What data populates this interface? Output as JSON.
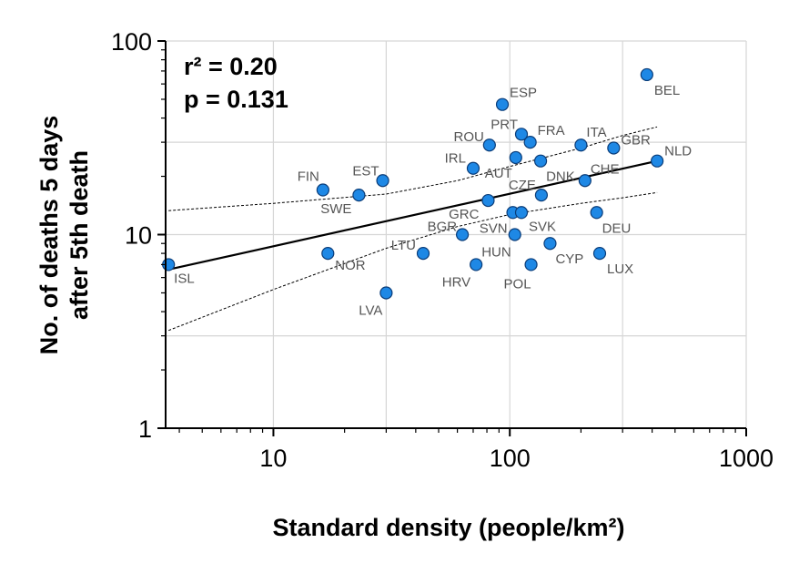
{
  "chart_data": {
    "type": "scatter",
    "xscale": "log",
    "yscale": "log",
    "xlim": [
      3.5,
      1000
    ],
    "ylim": [
      1,
      100
    ],
    "xticks": [
      10,
      100,
      1000
    ],
    "xtick_labels": [
      "10",
      "100",
      "1000"
    ],
    "yticks": [
      1,
      10,
      100
    ],
    "ytick_labels": [
      "1",
      "10",
      "100"
    ],
    "xlabel": "Standard density (people/km²)",
    "ylabel_line1": "No. of deaths 5 days",
    "ylabel_line2": "after 5th death",
    "stats": {
      "r2": "r² = 0.20",
      "p": "p = 0.131"
    },
    "point_color": "#1e88e5",
    "points": [
      {
        "label": "ISL",
        "x": 3.6,
        "y": 7.0
      },
      {
        "label": "FIN",
        "x": 16.2,
        "y": 17.0
      },
      {
        "label": "NOR",
        "x": 17.0,
        "y": 8.0
      },
      {
        "label": "SWE",
        "x": 23.0,
        "y": 16.0
      },
      {
        "label": "EST",
        "x": 29.0,
        "y": 19.0
      },
      {
        "label": "LVA",
        "x": 30.0,
        "y": 5.0
      },
      {
        "label": "LTU",
        "x": 43.0,
        "y": 8.0
      },
      {
        "label": "BGR",
        "x": 63.0,
        "y": 10.0
      },
      {
        "label": "IRL",
        "x": 70.0,
        "y": 22.0
      },
      {
        "label": "HRV",
        "x": 72.0,
        "y": 7.0
      },
      {
        "label": "GRC",
        "x": 81.0,
        "y": 15.0
      },
      {
        "label": "ROU",
        "x": 82.0,
        "y": 29.0
      },
      {
        "label": "ESP",
        "x": 93.0,
        "y": 47.0
      },
      {
        "label": "SVN",
        "x": 103.0,
        "y": 13.0
      },
      {
        "label": "HUN",
        "x": 105.0,
        "y": 10.0
      },
      {
        "label": "AUT",
        "x": 106.0,
        "y": 25.0
      },
      {
        "label": "PRT",
        "x": 112.0,
        "y": 33.0
      },
      {
        "label": "SVK",
        "x": 112.0,
        "y": 13.0
      },
      {
        "label": "FRA",
        "x": 122.0,
        "y": 30.0
      },
      {
        "label": "POL",
        "x": 123.0,
        "y": 7.0
      },
      {
        "label": "CZE",
        "x": 136.0,
        "y": 16.0
      },
      {
        "label": "DNK",
        "x": 135.0,
        "y": 24.0
      },
      {
        "label": "CYP",
        "x": 148.0,
        "y": 9.0
      },
      {
        "label": "ITA",
        "x": 200.0,
        "y": 29.0
      },
      {
        "label": "CHE",
        "x": 208.0,
        "y": 19.0
      },
      {
        "label": "DEU",
        "x": 233.0,
        "y": 13.0
      },
      {
        "label": "LUX",
        "x": 240.0,
        "y": 8.0
      },
      {
        "label": "GBR",
        "x": 275.0,
        "y": 28.0
      },
      {
        "label": "BEL",
        "x": 380.0,
        "y": 67.0
      },
      {
        "label": "NLD",
        "x": 420.0,
        "y": 24.0
      }
    ],
    "fit_line": [
      {
        "x": 3.6,
        "y": 6.6
      },
      {
        "x": 420.0,
        "y": 24.0
      }
    ],
    "ci_upper": [
      {
        "x": 3.6,
        "y": 13.3
      },
      {
        "x": 10,
        "y": 14.5
      },
      {
        "x": 30,
        "y": 16.2
      },
      {
        "x": 60,
        "y": 19.0
      },
      {
        "x": 100,
        "y": 22.5
      },
      {
        "x": 200,
        "y": 28.0
      },
      {
        "x": 300,
        "y": 32.5
      },
      {
        "x": 420,
        "y": 36.0
      }
    ],
    "ci_lower": [
      {
        "x": 3.6,
        "y": 3.2
      },
      {
        "x": 10,
        "y": 5.2
      },
      {
        "x": 30,
        "y": 8.5
      },
      {
        "x": 60,
        "y": 11.0
      },
      {
        "x": 100,
        "y": 12.7
      },
      {
        "x": 200,
        "y": 14.5
      },
      {
        "x": 300,
        "y": 15.5
      },
      {
        "x": 420,
        "y": 16.5
      }
    ]
  }
}
